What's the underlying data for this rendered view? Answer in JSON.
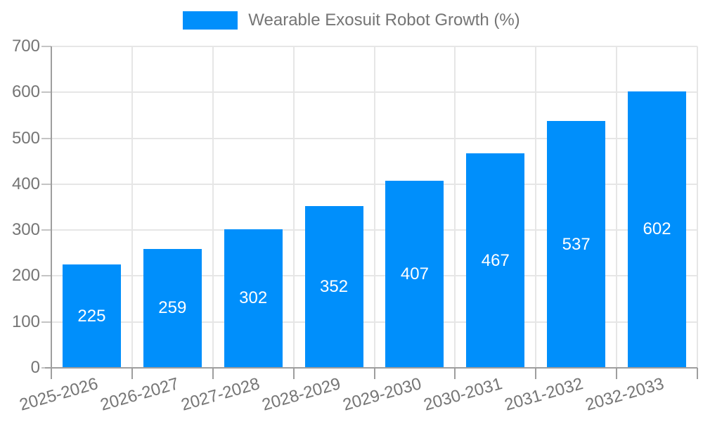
{
  "chart_data": {
    "type": "bar",
    "legend": [
      "Wearable Exosuit Robot Growth (%)"
    ],
    "legend_position": "top",
    "categories": [
      "2025-2026",
      "2026-2027",
      "2027-2028",
      "2028-2029",
      "2029-2030",
      "2030-2031",
      "2031-2032",
      "2032-2033"
    ],
    "values": [
      225,
      259,
      302,
      352,
      407,
      467,
      537,
      602
    ],
    "value_labels_shown": true,
    "xlabel": "",
    "ylabel": "",
    "ylim": [
      0,
      700
    ],
    "yticks": [
      0,
      100,
      200,
      300,
      400,
      500,
      600,
      700
    ],
    "grid": true,
    "colors": {
      "bar": "#008FFB",
      "axis_text": "#757575",
      "value_label": "#FFFFFF",
      "gridline": "#E6E6E6",
      "axis_line": "#9E9E9E",
      "tick": "#C4C4C4",
      "background": "#FFFFFF"
    }
  }
}
